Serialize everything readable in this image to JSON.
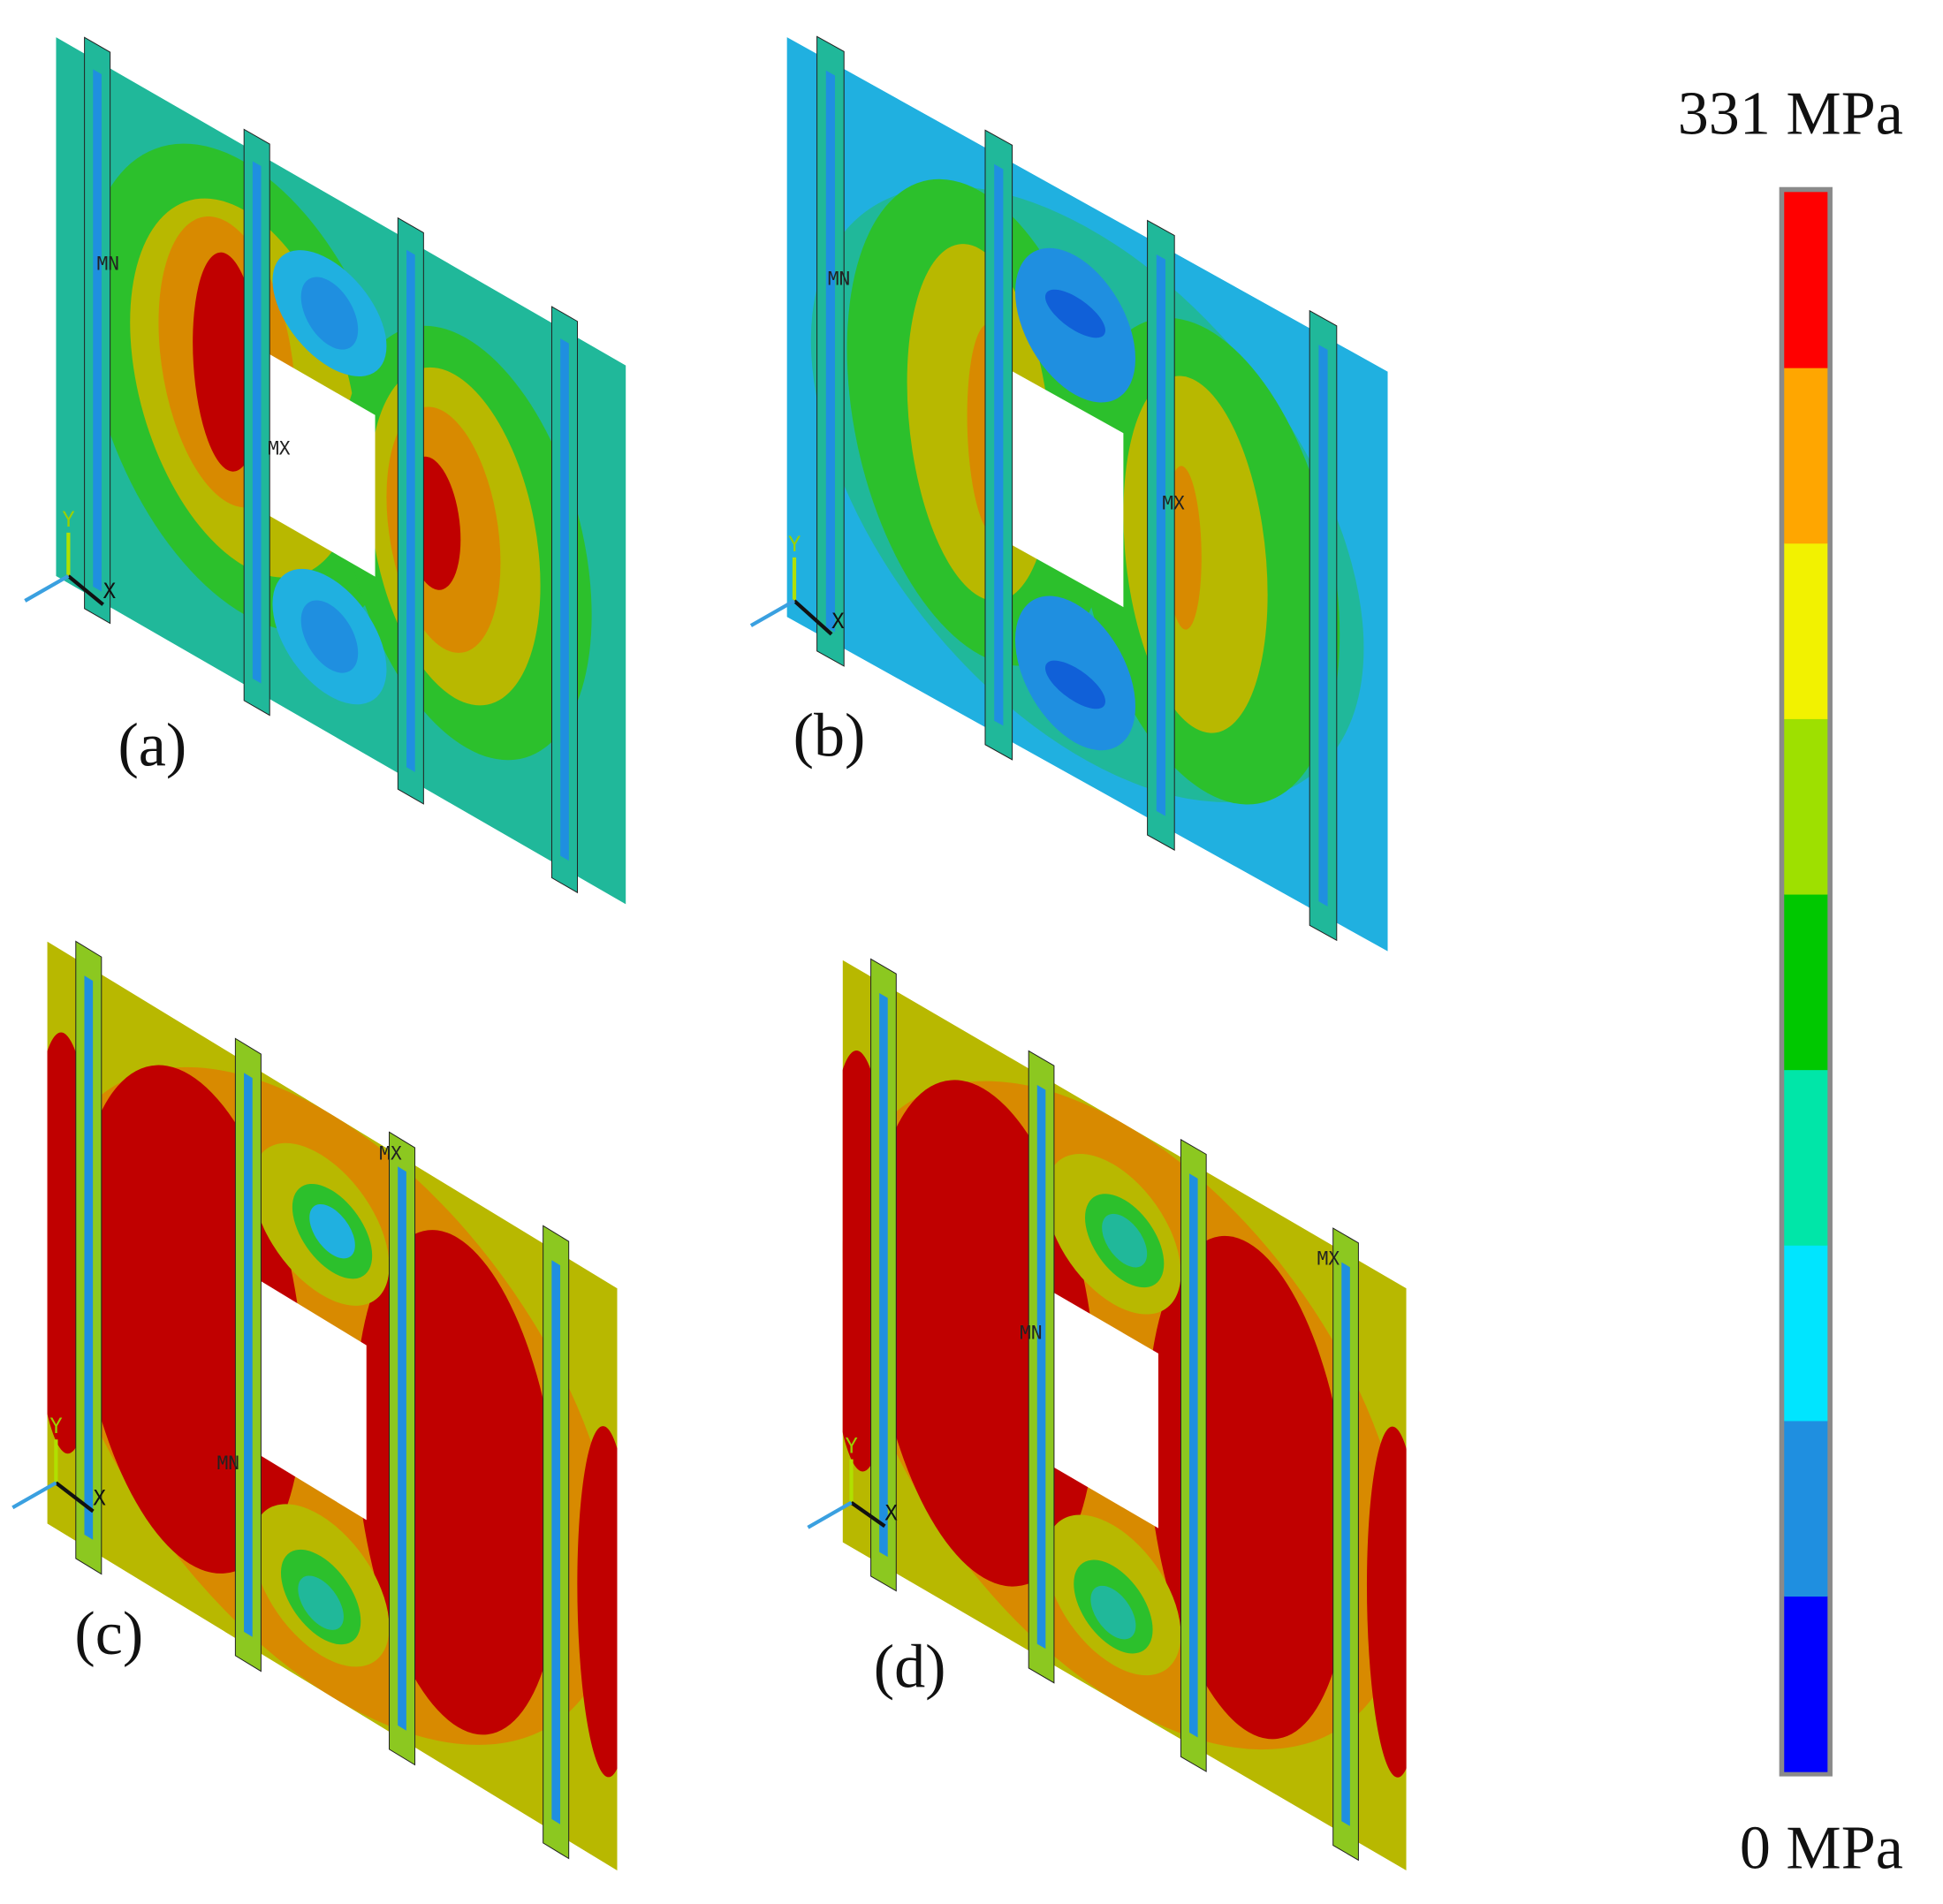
{
  "colorbar": {
    "max_label": "331 MPa",
    "min_label": "0 MPa",
    "colors": [
      "#0000ff",
      "#1f8fe0",
      "#00e5ff",
      "#00e6a8",
      "#00c800",
      "#9ee000",
      "#f2f200",
      "#ffa600",
      "#ff0000"
    ]
  },
  "panels": [
    {
      "label": "(a)",
      "markers": [
        "MN",
        "MX"
      ],
      "triad": [
        "Y",
        "X"
      ]
    },
    {
      "label": "(b)",
      "markers": [
        "MN",
        "MX"
      ],
      "triad": [
        "Y",
        "X"
      ]
    },
    {
      "label": "(c)",
      "markers": [
        "MX",
        "MN"
      ],
      "triad": [
        "Y",
        "X"
      ]
    },
    {
      "label": "(d)",
      "markers": [
        "MN",
        "MX"
      ],
      "triad": [
        "Y",
        "X"
      ]
    }
  ]
}
